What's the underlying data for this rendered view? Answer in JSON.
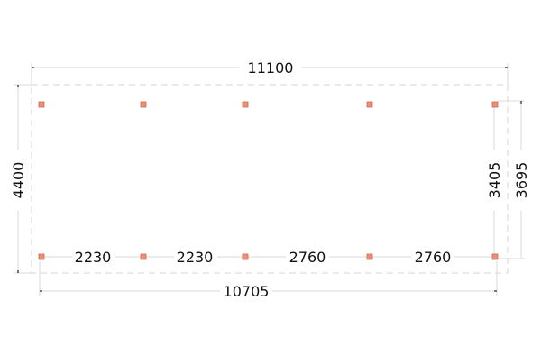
{
  "drawing": {
    "overall_width": "11100",
    "overall_depth": "4400",
    "post_span_total": "10705",
    "post_depth": "3405",
    "side_depth": "3695",
    "bay_spacings": [
      "2230",
      "2230",
      "2760",
      "2760"
    ],
    "post_color": "#ef8f72"
  }
}
